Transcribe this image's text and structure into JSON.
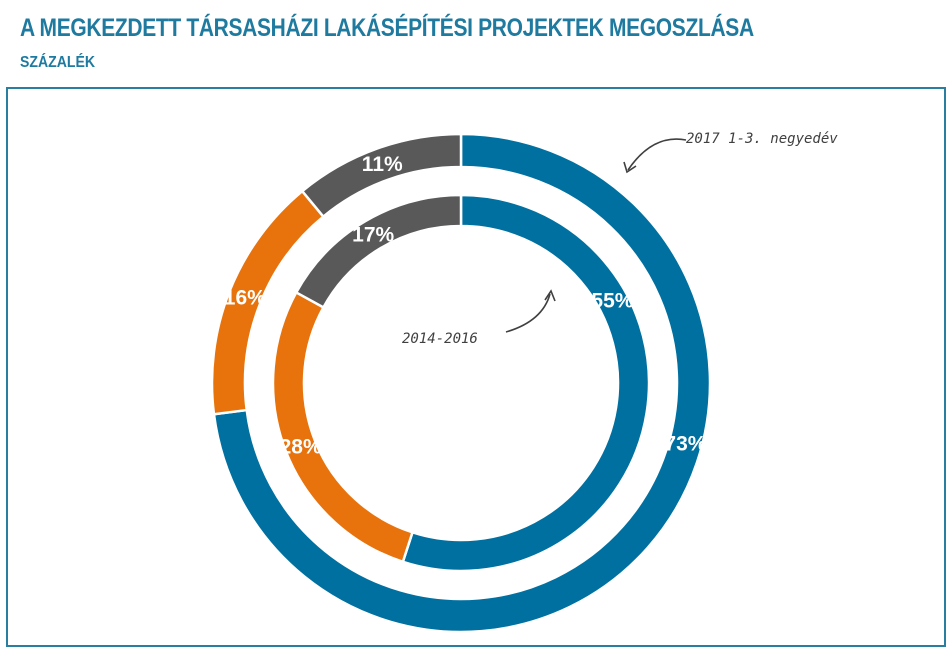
{
  "header": {
    "title": "A MEGKEZDETT TÁRSASHÁZI LAKÁSÉPÍTÉSI PROJEKTEK MEGOSZLÁSA",
    "subtitle": "SZÁZALÉK"
  },
  "colors": {
    "title": "#1f7aa0",
    "frame": "#2a7fa1",
    "annotation": "#404040"
  },
  "chart_data": {
    "type": "pie",
    "variant": "double-donut",
    "title": "A MEGKEZDETT TÁRSASHÁZI LAKÁSÉPÍTÉSI PROJEKTEK MEGOSZLÁSA",
    "subtitle": "SZÁZALÉK",
    "series": [
      {
        "name": "2017 1-3. negyedév",
        "ring": "outer",
        "values": [
          73,
          16,
          11
        ],
        "labels": [
          "73%",
          "16%",
          "11%"
        ],
        "colors": [
          "#0070a0",
          "#e8730c",
          "#595959"
        ]
      },
      {
        "name": "2014-2016",
        "ring": "inner",
        "values": [
          55,
          28,
          17
        ],
        "labels": [
          "55%",
          "28%",
          "17%"
        ],
        "colors": [
          "#0070a0",
          "#e8730c",
          "#595959"
        ]
      }
    ],
    "legend": "none",
    "annotations": [
      "2017 1-3. negyedév",
      "2014-2016"
    ]
  }
}
